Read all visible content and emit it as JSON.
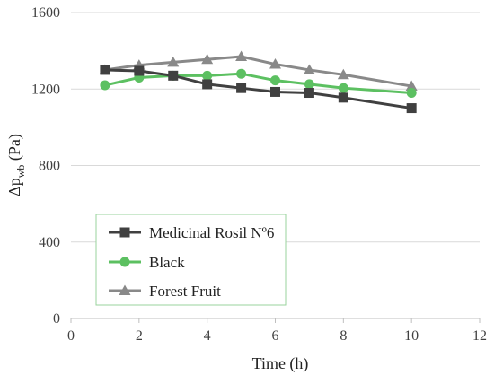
{
  "chart_data": {
    "type": "line",
    "xlabel": "Time (h)",
    "ylabel_main": "Δp",
    "ylabel_sub": "wb",
    "ylabel_unit": " (Pa)",
    "xlim": [
      0,
      12
    ],
    "ylim": [
      0,
      1600
    ],
    "x_ticks": [
      "0",
      "2",
      "4",
      "6",
      "8",
      "10",
      "12"
    ],
    "y_ticks": [
      "0",
      "400",
      "800",
      "1200",
      "1600"
    ],
    "grid": true,
    "legend_position": "bottom-left",
    "series": [
      {
        "name": "Medicinal Rosil Nº6",
        "color": "#404040",
        "marker": "square",
        "x": [
          1,
          2,
          3,
          4,
          5,
          6,
          7,
          8,
          10
        ],
        "y": [
          1300,
          1295,
          1270,
          1225,
          1205,
          1185,
          1180,
          1155,
          1100
        ]
      },
      {
        "name": "Black",
        "color": "#5cc061",
        "marker": "circle",
        "x": [
          1,
          2,
          3,
          4,
          5,
          6,
          7,
          8,
          10
        ],
        "y": [
          1220,
          1260,
          1270,
          1270,
          1280,
          1245,
          1225,
          1205,
          1180
        ]
      },
      {
        "name": "Forest Fruit",
        "color": "#898989",
        "marker": "triangle",
        "x": [
          1,
          2,
          3,
          4,
          5,
          6,
          7,
          8,
          10
        ],
        "y": [
          1300,
          1325,
          1340,
          1355,
          1370,
          1330,
          1300,
          1275,
          1215
        ]
      }
    ]
  }
}
